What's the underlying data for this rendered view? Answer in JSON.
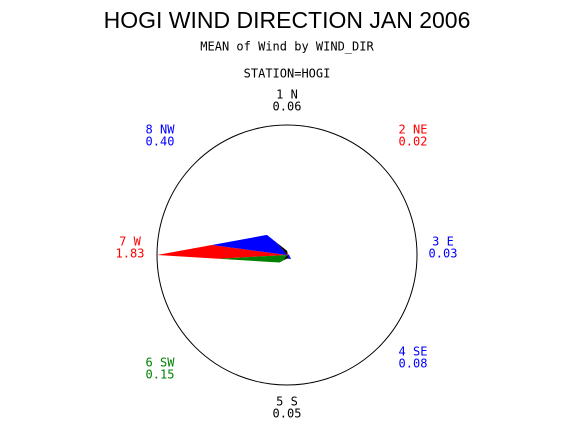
{
  "chart_data": {
    "type": "star",
    "title": "HOGI WIND DIRECTION JAN 2006",
    "subtitle": "MEAN of Wind by WIND_DIR",
    "station": "STATION=HOGI",
    "categories": [
      "1 N",
      "2 NE",
      "3 E",
      "4 SE",
      "5 S",
      "6 SW",
      "7 W",
      "8 NW"
    ],
    "values": [
      0.06,
      0.02,
      0.03,
      0.08,
      0.05,
      0.15,
      1.83,
      0.4
    ],
    "value_labels": [
      "0.06",
      "0.02",
      "0.03",
      "0.08",
      "0.05",
      "0.15",
      "1.83",
      "0.40"
    ],
    "colors": [
      "#000000",
      "#ff0000",
      "#0000ff",
      "#0000ff",
      "#000000",
      "#008000",
      "#ff0000",
      "#0000ff"
    ],
    "rlim": [
      0,
      1.83
    ]
  }
}
